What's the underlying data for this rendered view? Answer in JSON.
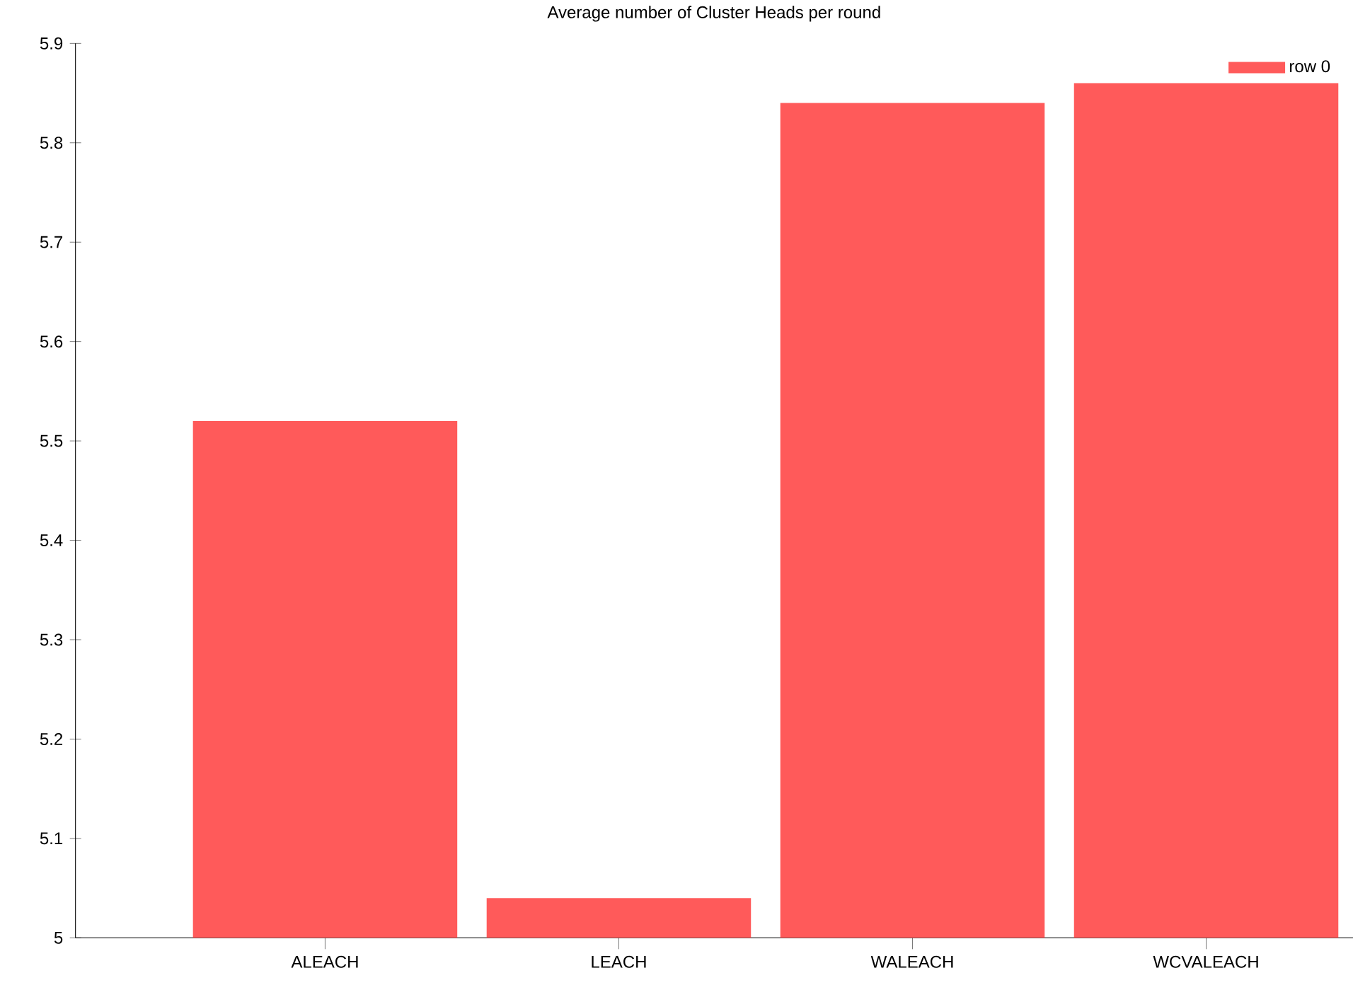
{
  "chart_data": {
    "type": "bar",
    "title": "Average number of Cluster Heads per round",
    "categories": [
      "ALEACH",
      "LEACH",
      "WALEACH",
      "WCVALEACH"
    ],
    "series": [
      {
        "name": "row 0",
        "color": "#ff5a5a",
        "values": [
          5.52,
          5.04,
          5.84,
          5.86
        ]
      }
    ],
    "ylim": [
      5,
      5.9
    ],
    "yticks": [
      5,
      5.1,
      5.2,
      5.3,
      5.4,
      5.5,
      5.6,
      5.7,
      5.8,
      5.9
    ],
    "legend": "top right"
  }
}
